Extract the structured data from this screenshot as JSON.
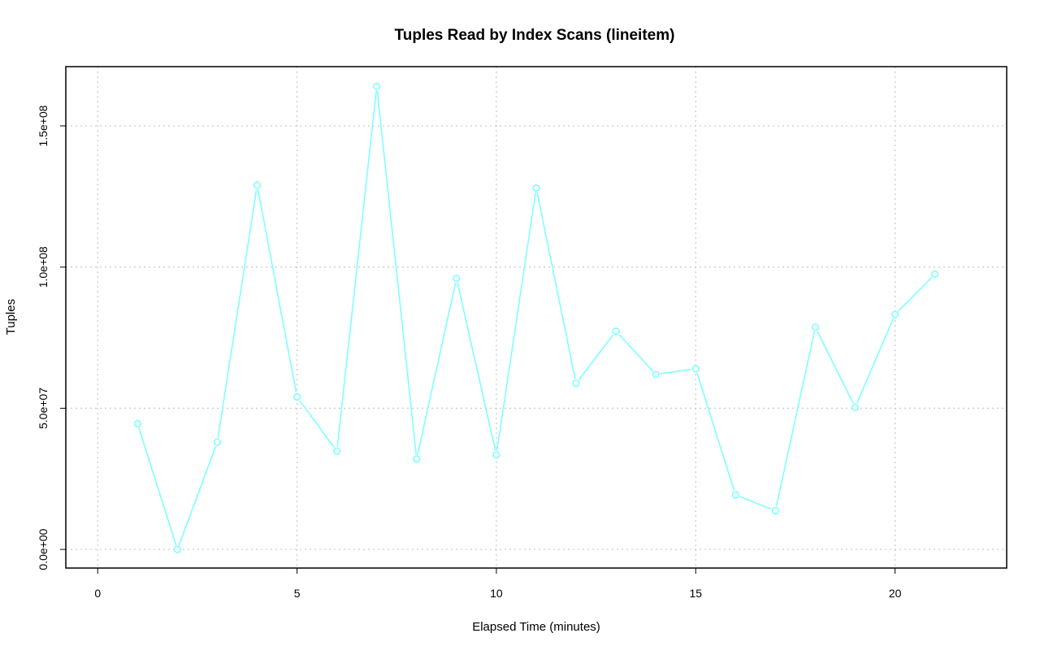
{
  "chart_data": {
    "type": "line",
    "title": "Tuples Read by Index Scans (lineitem)",
    "xlabel": "Elapsed Time (minutes)",
    "ylabel": "Tuples",
    "xlim": [
      -0.8,
      22.8
    ],
    "ylim": [
      -6600000,
      171000000
    ],
    "x_ticks": [
      0,
      5,
      10,
      15,
      20
    ],
    "x_tick_labels": [
      "0",
      "5",
      "10",
      "15",
      "20"
    ],
    "y_ticks": [
      0,
      50000000,
      100000000,
      150000000
    ],
    "y_tick_labels": [
      "0.0e+00",
      "5.0e+07",
      "1.0e+08",
      "1.5e+08"
    ],
    "grid": true,
    "line_color": "#7fffff",
    "series": [
      {
        "x": [
          1,
          2,
          3,
          4,
          5,
          6,
          7,
          8,
          9,
          10,
          11,
          12,
          13,
          14,
          15,
          16,
          17,
          18,
          19,
          20,
          21
        ],
        "values": [
          44500000,
          0,
          38000000,
          129000000,
          54000000,
          34800000,
          164000000,
          32000000,
          96000000,
          33500000,
          128000000,
          58800000,
          77300000,
          62000000,
          64000000,
          19300000,
          13700000,
          78700000,
          50300000,
          83200000,
          97500000
        ]
      }
    ]
  }
}
